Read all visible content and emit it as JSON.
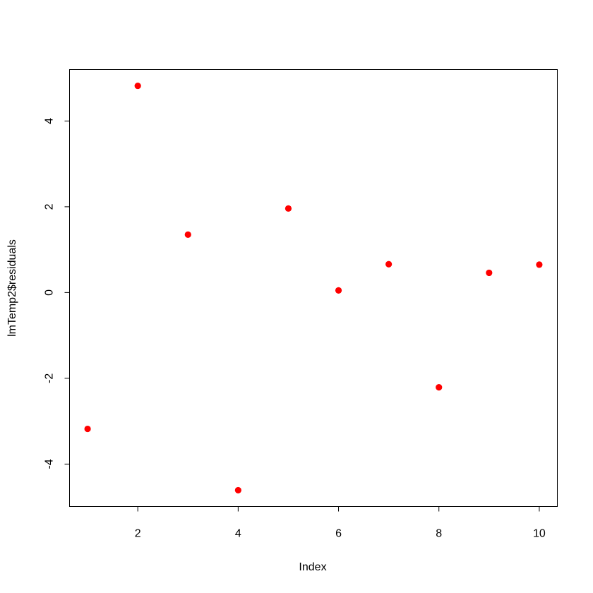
{
  "chart_data": {
    "type": "scatter",
    "xlabel": "Index",
    "ylabel": "lmTemp2$residuals",
    "x": [
      1,
      2,
      3,
      4,
      5,
      6,
      7,
      8,
      9,
      10
    ],
    "y": [
      -3.18,
      4.82,
      1.35,
      -4.61,
      1.96,
      0.05,
      0.66,
      -2.21,
      0.46,
      0.65
    ],
    "xlim": [
      0.64,
      10.36
    ],
    "ylim": [
      -4.99,
      5.2
    ],
    "x_ticks": [
      2,
      4,
      6,
      8,
      10
    ],
    "y_ticks": [
      -4,
      -2,
      0,
      2,
      4
    ],
    "grid": false,
    "box": true,
    "point_color": "#ff0000"
  }
}
